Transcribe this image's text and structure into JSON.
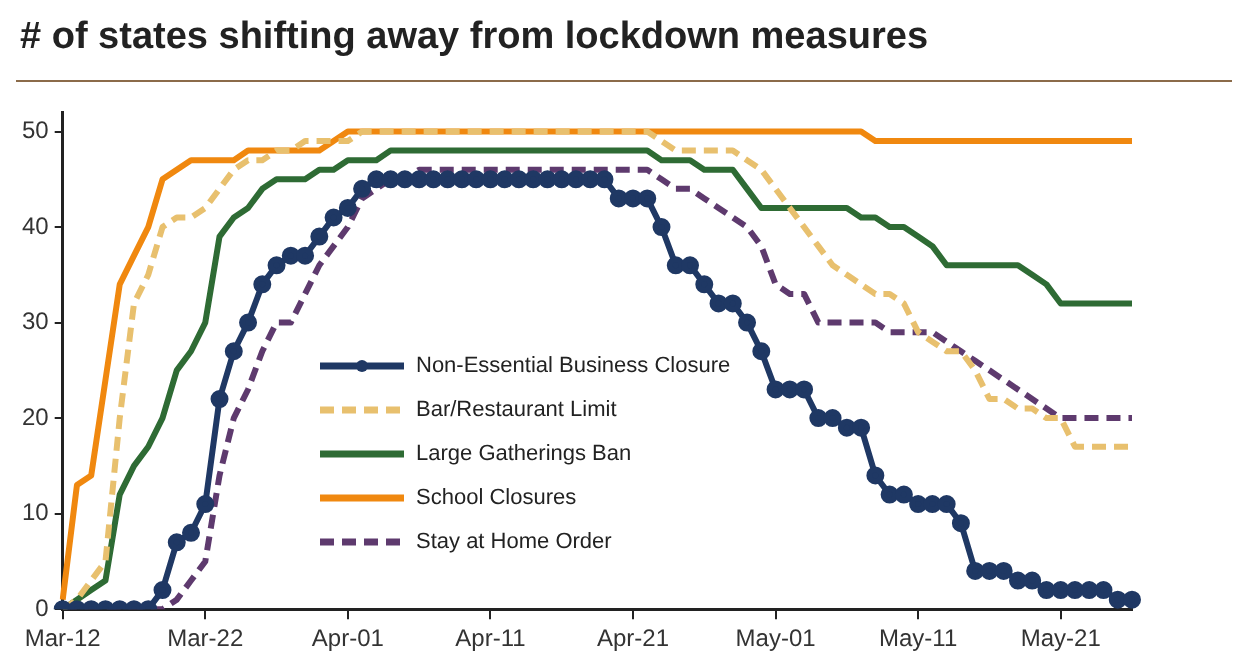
{
  "chart_data": {
    "type": "line",
    "title": "# of states shifting away from lockdown measures",
    "categories": [
      "Mar-12",
      null,
      null,
      null,
      null,
      null,
      null,
      null,
      null,
      null,
      "Mar-22",
      null,
      null,
      null,
      null,
      null,
      null,
      null,
      null,
      null,
      "Apr-01",
      null,
      null,
      null,
      null,
      null,
      null,
      null,
      null,
      null,
      "Apr-11",
      null,
      null,
      null,
      null,
      null,
      null,
      null,
      null,
      null,
      "Apr-21",
      null,
      null,
      null,
      null,
      null,
      null,
      null,
      null,
      null,
      "May-01",
      null,
      null,
      null,
      null,
      null,
      null,
      null,
      null,
      null,
      "May-11",
      null,
      null,
      null,
      null,
      null,
      null,
      null,
      null,
      null,
      "May-21",
      null,
      null,
      null,
      null,
      null
    ],
    "series": [
      {
        "name": "Non-Essential Business Closure",
        "color": "#1f3864",
        "marker": "circle",
        "line_style": "solid",
        "values": [
          0,
          0,
          0,
          0,
          0,
          0,
          0,
          2,
          7,
          8,
          11,
          22,
          27,
          30,
          34,
          36,
          37,
          37,
          39,
          41,
          42,
          44,
          45,
          45,
          45,
          45,
          45,
          45,
          45,
          45,
          45,
          45,
          45,
          45,
          45,
          45,
          45,
          45,
          45,
          43,
          43,
          43,
          40,
          36,
          36,
          34,
          32,
          32,
          30,
          27,
          23,
          23,
          23,
          20,
          20,
          19,
          19,
          14,
          12,
          12,
          11,
          11,
          11,
          9,
          4,
          4,
          4,
          3,
          3,
          2,
          2,
          2,
          2,
          2,
          1,
          1
        ]
      },
      {
        "name": "Bar/Restaurant Limit",
        "color": "#e8c06e",
        "marker": "none",
        "line_style": "dashed",
        "values": [
          0,
          1,
          3,
          5,
          20,
          32,
          35,
          40,
          41,
          41,
          42,
          44,
          46,
          47,
          47,
          48,
          48,
          49,
          49,
          49,
          49,
          50,
          50,
          50,
          50,
          50,
          50,
          50,
          50,
          50,
          50,
          50,
          50,
          50,
          50,
          50,
          50,
          50,
          50,
          50,
          50,
          50,
          49,
          48,
          48,
          48,
          48,
          48,
          47,
          46,
          44,
          42,
          40,
          38,
          36,
          35,
          34,
          33,
          33,
          32,
          29,
          28,
          27,
          27,
          25,
          22,
          22,
          21,
          21,
          20,
          20,
          17,
          17,
          17,
          17,
          17
        ]
      },
      {
        "name": "Large Gatherings Ban",
        "color": "#2e6b34",
        "marker": "none",
        "line_style": "solid",
        "values": [
          0,
          1,
          2,
          3,
          12,
          15,
          17,
          20,
          25,
          27,
          30,
          39,
          41,
          42,
          44,
          45,
          45,
          45,
          46,
          46,
          47,
          47,
          47,
          48,
          48,
          48,
          48,
          48,
          48,
          48,
          48,
          48,
          48,
          48,
          48,
          48,
          48,
          48,
          48,
          48,
          48,
          48,
          47,
          47,
          47,
          46,
          46,
          46,
          44,
          42,
          42,
          42,
          42,
          42,
          42,
          42,
          41,
          41,
          40,
          40,
          39,
          38,
          36,
          36,
          36,
          36,
          36,
          36,
          35,
          34,
          32,
          32,
          32,
          32,
          32,
          32
        ]
      },
      {
        "name": "School Closures",
        "color": "#f0880f",
        "marker": "none",
        "line_style": "solid",
        "values": [
          1,
          13,
          14,
          24,
          34,
          37,
          40,
          45,
          46,
          47,
          47,
          47,
          47,
          48,
          48,
          48,
          48,
          48,
          48,
          49,
          50,
          50,
          50,
          50,
          50,
          50,
          50,
          50,
          50,
          50,
          50,
          50,
          50,
          50,
          50,
          50,
          50,
          50,
          50,
          50,
          50,
          50,
          50,
          50,
          50,
          50,
          50,
          50,
          50,
          50,
          50,
          50,
          50,
          50,
          50,
          50,
          50,
          49,
          49,
          49,
          49,
          49,
          49,
          49,
          49,
          49,
          49,
          49,
          49,
          49,
          49,
          49,
          49,
          49,
          49,
          49
        ]
      },
      {
        "name": "Stay at Home Order",
        "color": "#5e3a6e",
        "marker": "none",
        "line_style": "dashed",
        "values": [
          0,
          0,
          0,
          0,
          0,
          0,
          0,
          0,
          1,
          3,
          5,
          14,
          20,
          23,
          27,
          30,
          30,
          33,
          36,
          38,
          40,
          43,
          44,
          45,
          45,
          46,
          46,
          46,
          46,
          46,
          46,
          46,
          46,
          46,
          46,
          46,
          46,
          46,
          46,
          46,
          46,
          46,
          45,
          44,
          44,
          43,
          42,
          41,
          40,
          38,
          34,
          33,
          33,
          30,
          30,
          30,
          30,
          30,
          29,
          29,
          29,
          29,
          28,
          27,
          26,
          25,
          24,
          23,
          22,
          21,
          20,
          20,
          20,
          20,
          20,
          20
        ]
      }
    ],
    "ylim": [
      0,
      52
    ],
    "yticks": [
      0,
      10,
      20,
      30,
      40,
      50
    ],
    "grid": false,
    "legend": "center"
  }
}
